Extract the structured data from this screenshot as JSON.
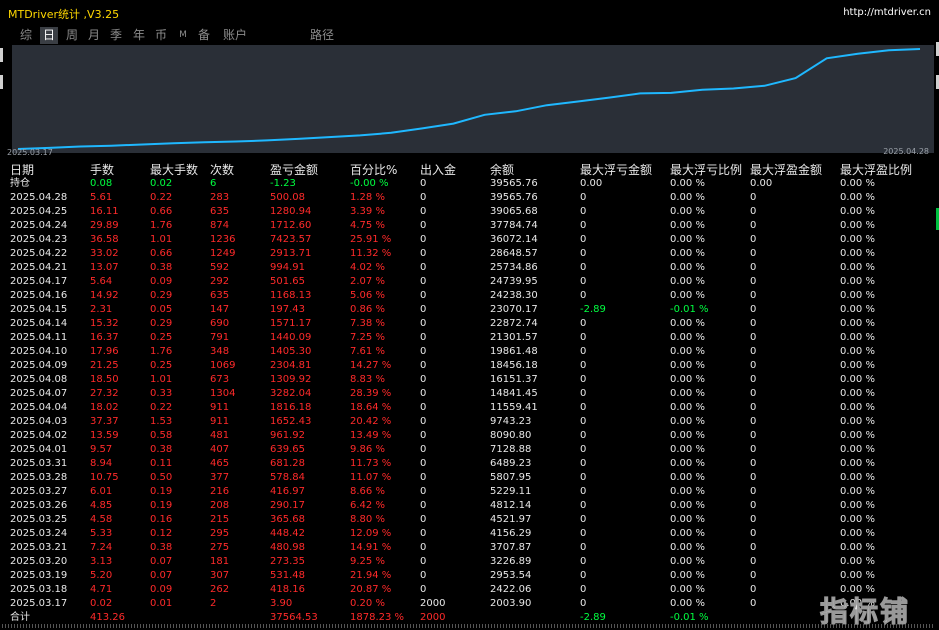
{
  "header": {
    "title": "MTDriver统计 ,V3.25",
    "url": "http://mtdriver.cn"
  },
  "tabs": [
    "综",
    "日",
    "周",
    "月",
    "季",
    "年",
    "币",
    "M",
    "备",
    "账户",
    "路径"
  ],
  "active_tab": "日",
  "chart": {
    "date_start": "2025.03.17",
    "date_end": "2025.04.28",
    "line_color": "#1fb8ff"
  },
  "columns": [
    "日期",
    "手数",
    "最大手数",
    "次数",
    "盈亏金额",
    "百分比%",
    "出入金",
    "余额",
    "最大浮亏金额",
    "最大浮亏比例",
    "最大浮盈金额",
    "最大浮盈比例"
  ],
  "holding": [
    "持仓",
    "0.08",
    "0.02",
    "6",
    "-1.23",
    "-0.00 %",
    "0",
    "39565.76",
    "0.00",
    "0.00 %",
    "0.00",
    "0.00 %"
  ],
  "rows": [
    [
      "2025.04.28",
      "5.61",
      "0.22",
      "283",
      "500.08",
      "1.28 %",
      "0",
      "39565.76",
      "0",
      "0.00 %",
      "0",
      "0.00 %"
    ],
    [
      "2025.04.25",
      "16.11",
      "0.66",
      "635",
      "1280.94",
      "3.39 %",
      "0",
      "39065.68",
      "0",
      "0.00 %",
      "0",
      "0.00 %"
    ],
    [
      "2025.04.24",
      "29.89",
      "1.76",
      "874",
      "1712.60",
      "4.75 %",
      "0",
      "37784.74",
      "0",
      "0.00 %",
      "0",
      "0.00 %"
    ],
    [
      "2025.04.23",
      "36.58",
      "1.01",
      "1236",
      "7423.57",
      "25.91 %",
      "0",
      "36072.14",
      "0",
      "0.00 %",
      "0",
      "0.00 %"
    ],
    [
      "2025.04.22",
      "33.02",
      "0.66",
      "1249",
      "2913.71",
      "11.32 %",
      "0",
      "28648.57",
      "0",
      "0.00 %",
      "0",
      "0.00 %"
    ],
    [
      "2025.04.21",
      "13.07",
      "0.38",
      "592",
      "994.91",
      "4.02 %",
      "0",
      "25734.86",
      "0",
      "0.00 %",
      "0",
      "0.00 %"
    ],
    [
      "2025.04.17",
      "5.64",
      "0.09",
      "292",
      "501.65",
      "2.07 %",
      "0",
      "24739.95",
      "0",
      "0.00 %",
      "0",
      "0.00 %"
    ],
    [
      "2025.04.16",
      "14.92",
      "0.29",
      "635",
      "1168.13",
      "5.06 %",
      "0",
      "24238.30",
      "0",
      "0.00 %",
      "0",
      "0.00 %"
    ],
    [
      "2025.04.15",
      "2.31",
      "0.05",
      "147",
      "197.43",
      "0.86 %",
      "0",
      "23070.17",
      "-2.89",
      "-0.01 %",
      "0",
      "0.00 %"
    ],
    [
      "2025.04.14",
      "15.32",
      "0.29",
      "690",
      "1571.17",
      "7.38 %",
      "0",
      "22872.74",
      "0",
      "0.00 %",
      "0",
      "0.00 %"
    ],
    [
      "2025.04.11",
      "16.37",
      "0.25",
      "791",
      "1440.09",
      "7.25 %",
      "0",
      "21301.57",
      "0",
      "0.00 %",
      "0",
      "0.00 %"
    ],
    [
      "2025.04.10",
      "17.96",
      "1.76",
      "348",
      "1405.30",
      "7.61 %",
      "0",
      "19861.48",
      "0",
      "0.00 %",
      "0",
      "0.00 %"
    ],
    [
      "2025.04.09",
      "21.25",
      "0.25",
      "1069",
      "2304.81",
      "14.27 %",
      "0",
      "18456.18",
      "0",
      "0.00 %",
      "0",
      "0.00 %"
    ],
    [
      "2025.04.08",
      "18.50",
      "1.01",
      "673",
      "1309.92",
      "8.83 %",
      "0",
      "16151.37",
      "0",
      "0.00 %",
      "0",
      "0.00 %"
    ],
    [
      "2025.04.07",
      "27.32",
      "0.33",
      "1304",
      "3282.04",
      "28.39 %",
      "0",
      "14841.45",
      "0",
      "0.00 %",
      "0",
      "0.00 %"
    ],
    [
      "2025.04.04",
      "18.02",
      "0.22",
      "911",
      "1816.18",
      "18.64 %",
      "0",
      "11559.41",
      "0",
      "0.00 %",
      "0",
      "0.00 %"
    ],
    [
      "2025.04.03",
      "37.37",
      "1.53",
      "911",
      "1652.43",
      "20.42 %",
      "0",
      "9743.23",
      "0",
      "0.00 %",
      "0",
      "0.00 %"
    ],
    [
      "2025.04.02",
      "13.59",
      "0.58",
      "481",
      "961.92",
      "13.49 %",
      "0",
      "8090.80",
      "0",
      "0.00 %",
      "0",
      "0.00 %"
    ],
    [
      "2025.04.01",
      "9.57",
      "0.38",
      "407",
      "639.65",
      "9.86 %",
      "0",
      "7128.88",
      "0",
      "0.00 %",
      "0",
      "0.00 %"
    ],
    [
      "2025.03.31",
      "8.94",
      "0.11",
      "465",
      "681.28",
      "11.73 %",
      "0",
      "6489.23",
      "0",
      "0.00 %",
      "0",
      "0.00 %"
    ],
    [
      "2025.03.28",
      "10.75",
      "0.50",
      "377",
      "578.84",
      "11.07 %",
      "0",
      "5807.95",
      "0",
      "0.00 %",
      "0",
      "0.00 %"
    ],
    [
      "2025.03.27",
      "6.01",
      "0.19",
      "216",
      "416.97",
      "8.66 %",
      "0",
      "5229.11",
      "0",
      "0.00 %",
      "0",
      "0.00 %"
    ],
    [
      "2025.03.26",
      "4.85",
      "0.19",
      "208",
      "290.17",
      "6.42 %",
      "0",
      "4812.14",
      "0",
      "0.00 %",
      "0",
      "0.00 %"
    ],
    [
      "2025.03.25",
      "4.58",
      "0.16",
      "215",
      "365.68",
      "8.80 %",
      "0",
      "4521.97",
      "0",
      "0.00 %",
      "0",
      "0.00 %"
    ],
    [
      "2025.03.24",
      "5.33",
      "0.12",
      "295",
      "448.42",
      "12.09 %",
      "0",
      "4156.29",
      "0",
      "0.00 %",
      "0",
      "0.00 %"
    ],
    [
      "2025.03.21",
      "7.24",
      "0.38",
      "275",
      "480.98",
      "14.91 %",
      "0",
      "3707.87",
      "0",
      "0.00 %",
      "0",
      "0.00 %"
    ],
    [
      "2025.03.20",
      "3.13",
      "0.07",
      "181",
      "273.35",
      "9.25 %",
      "0",
      "3226.89",
      "0",
      "0.00 %",
      "0",
      "0.00 %"
    ],
    [
      "2025.03.19",
      "5.20",
      "0.07",
      "307",
      "531.48",
      "21.94 %",
      "0",
      "2953.54",
      "0",
      "0.00 %",
      "0",
      "0.00 %"
    ],
    [
      "2025.03.18",
      "4.71",
      "0.09",
      "262",
      "418.16",
      "20.87 %",
      "0",
      "2422.06",
      "0",
      "0.00 %",
      "0",
      "0.00 %"
    ],
    [
      "2025.03.17",
      "0.02",
      "0.01",
      "2",
      "3.90",
      "0.20 %",
      "2000",
      "2003.90",
      "0",
      "0.00 %",
      "0",
      "0.00 %"
    ]
  ],
  "total": [
    "合计",
    "413.26",
    "",
    "",
    "37564.53",
    "1878.23 %",
    "2000",
    "",
    "-2.89",
    "-0.01 %",
    "",
    ""
  ],
  "watermark": "指标铺"
}
